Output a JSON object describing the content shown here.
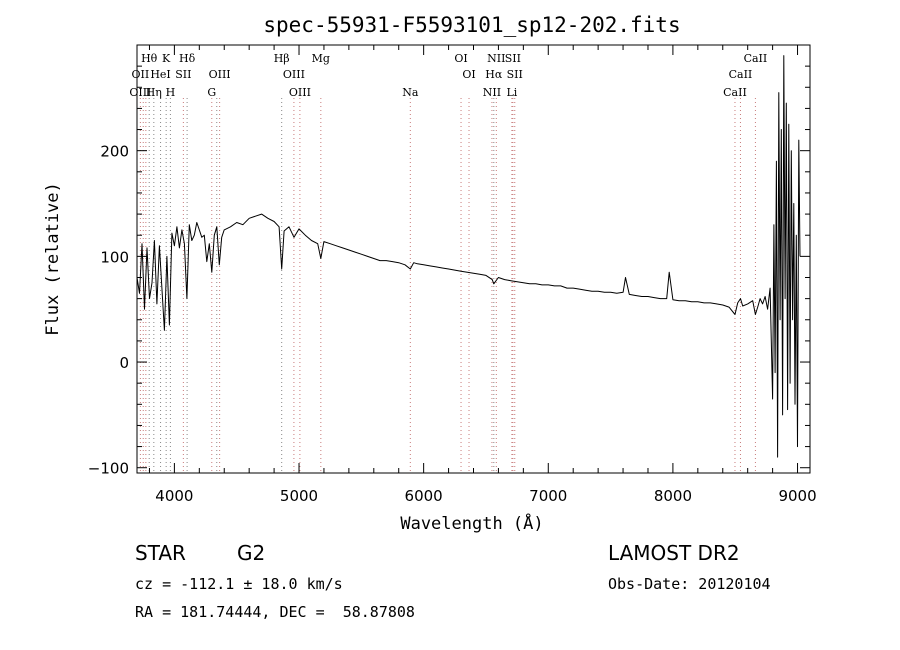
{
  "chart_data": {
    "type": "line",
    "title": "spec-55931-F5593101_sp12-202.fits",
    "xlabel": "Wavelength (Å)",
    "ylabel": "Flux (relative)",
    "xlim": [
      3700,
      9100
    ],
    "ylim": [
      -105,
      300
    ],
    "x_ticks": [
      4000,
      5000,
      6000,
      7000,
      8000,
      9000
    ],
    "y_ticks": [
      -100,
      0,
      100,
      200
    ],
    "grid": false,
    "line_labels": [
      {
        "label": "Hθ",
        "wavelength": 3798,
        "row": 0
      },
      {
        "label": "K",
        "wavelength": 3934,
        "row": 0
      },
      {
        "label": "Hδ",
        "wavelength": 4102,
        "row": 0
      },
      {
        "label": "Hβ",
        "wavelength": 4861,
        "row": 0
      },
      {
        "label": "Mg",
        "wavelength": 5175,
        "row": 0
      },
      {
        "label": "OI",
        "wavelength": 6300,
        "row": 0
      },
      {
        "label": "NII",
        "wavelength": 6583,
        "row": 0
      },
      {
        "label": "SII",
        "wavelength": 6716,
        "row": 0
      },
      {
        "label": "CaII",
        "wavelength": 8662,
        "row": 0
      },
      {
        "label": "OII",
        "wavelength": 3727,
        "row": 1
      },
      {
        "label": "HeI",
        "wavelength": 3889,
        "row": 1
      },
      {
        "label": "SII",
        "wavelength": 4072,
        "row": 1
      },
      {
        "label": "OIII",
        "wavelength": 4363,
        "row": 1
      },
      {
        "label": "OIII",
        "wavelength": 4959,
        "row": 1
      },
      {
        "label": "OI",
        "wavelength": 6364,
        "row": 1
      },
      {
        "label": "Hα",
        "wavelength": 6563,
        "row": 1
      },
      {
        "label": "SII",
        "wavelength": 6731,
        "row": 1
      },
      {
        "label": "CaII",
        "wavelength": 8542,
        "row": 1
      },
      {
        "label": "OIII",
        "wavelength": 3727,
        "row": 2
      },
      {
        "label": "Hη",
        "wavelength": 3835,
        "row": 2
      },
      {
        "label": "H",
        "wavelength": 3968,
        "row": 2
      },
      {
        "label": "G",
        "wavelength": 4300,
        "row": 2
      },
      {
        "label": "OIII",
        "wavelength": 5007,
        "row": 2
      },
      {
        "label": "Na",
        "wavelength": 5893,
        "row": 2
      },
      {
        "label": "NII",
        "wavelength": 6548,
        "row": 2
      },
      {
        "label": "Li",
        "wavelength": 6708,
        "row": 2
      },
      {
        "label": "CaII",
        "wavelength": 8498,
        "row": 2
      }
    ],
    "marker_lines": [
      3727,
      3750,
      3771,
      3798,
      3835,
      3889,
      3934,
      3968,
      4072,
      4102,
      4300,
      4340,
      4363,
      4861,
      4959,
      5007,
      5175,
      5893,
      6300,
      6364,
      6548,
      6563,
      6583,
      6708,
      6716,
      6731,
      8498,
      8542,
      8662
    ],
    "series": [
      {
        "color": "#000000",
        "x": [
          3700,
          3720,
          3740,
          3760,
          3780,
          3800,
          3820,
          3840,
          3860,
          3880,
          3900,
          3920,
          3940,
          3960,
          3980,
          4000,
          4020,
          4040,
          4060,
          4080,
          4100,
          4120,
          4140,
          4160,
          4180,
          4200,
          4220,
          4240,
          4260,
          4280,
          4300,
          4320,
          4340,
          4360,
          4380,
          4400,
          4450,
          4500,
          4550,
          4600,
          4650,
          4700,
          4750,
          4800,
          4840,
          4861,
          4880,
          4920,
          4960,
          5000,
          5050,
          5100,
          5150,
          5175,
          5200,
          5250,
          5300,
          5350,
          5400,
          5450,
          5500,
          5550,
          5600,
          5650,
          5700,
          5750,
          5800,
          5850,
          5893,
          5920,
          5950,
          6000,
          6050,
          6100,
          6150,
          6200,
          6250,
          6300,
          6350,
          6400,
          6450,
          6500,
          6550,
          6563,
          6600,
          6650,
          6700,
          6750,
          6800,
          6850,
          6900,
          6950,
          7000,
          7050,
          7100,
          7150,
          7200,
          7250,
          7300,
          7350,
          7400,
          7450,
          7500,
          7550,
          7600,
          7620,
          7650,
          7700,
          7750,
          7800,
          7850,
          7900,
          7950,
          7970,
          8000,
          8050,
          8100,
          8150,
          8200,
          8250,
          8300,
          8350,
          8400,
          8450,
          8498,
          8520,
          8542,
          8560,
          8600,
          8640,
          8662,
          8680,
          8700,
          8720,
          8740,
          8760,
          8780,
          8800,
          8810,
          8820,
          8830,
          8840,
          8850,
          8860,
          8870,
          8880,
          8890,
          8900,
          8910,
          8920,
          8930,
          8940,
          8950,
          8960,
          8970,
          8980,
          8990,
          9000,
          9010,
          9020
        ],
        "y": [
          80,
          65,
          112,
          50,
          108,
          60,
          75,
          115,
          55,
          110,
          70,
          30,
          100,
          35,
          122,
          110,
          128,
          108,
          125,
          112,
          60,
          130,
          115,
          120,
          132,
          125,
          118,
          120,
          95,
          112,
          85,
          120,
          128,
          92,
          118,
          125,
          128,
          132,
          130,
          136,
          138,
          140,
          136,
          133,
          128,
          88,
          124,
          128,
          118,
          126,
          120,
          115,
          112,
          98,
          114,
          112,
          110,
          108,
          106,
          104,
          102,
          100,
          98,
          96,
          96,
          95,
          94,
          92,
          88,
          94,
          93,
          92,
          91,
          90,
          89,
          88,
          87,
          86,
          85,
          84,
          83,
          82,
          78,
          74,
          80,
          78,
          77,
          76,
          75,
          74,
          74,
          73,
          73,
          72,
          72,
          70,
          70,
          69,
          68,
          67,
          67,
          66,
          66,
          65,
          66,
          80,
          64,
          63,
          62,
          62,
          61,
          60,
          60,
          85,
          59,
          58,
          58,
          57,
          57,
          56,
          56,
          55,
          54,
          52,
          45,
          56,
          60,
          53,
          55,
          58,
          45,
          52,
          60,
          55,
          62,
          50,
          70,
          -35,
          130,
          -10,
          190,
          -90,
          255,
          40,
          220,
          -50,
          290,
          60,
          245,
          -45,
          225,
          -20,
          200,
          40,
          150,
          -40,
          120,
          -80,
          210,
          100
        ]
      }
    ]
  },
  "info": {
    "object_class": "STAR",
    "subclass": "G2",
    "survey": "LAMOST DR2",
    "cz": "cz = -112.1 ± 18.0 km/s",
    "obs_date": "Obs-Date: 20120104",
    "coords": "RA = 181.74444, DEC =  58.87808"
  }
}
